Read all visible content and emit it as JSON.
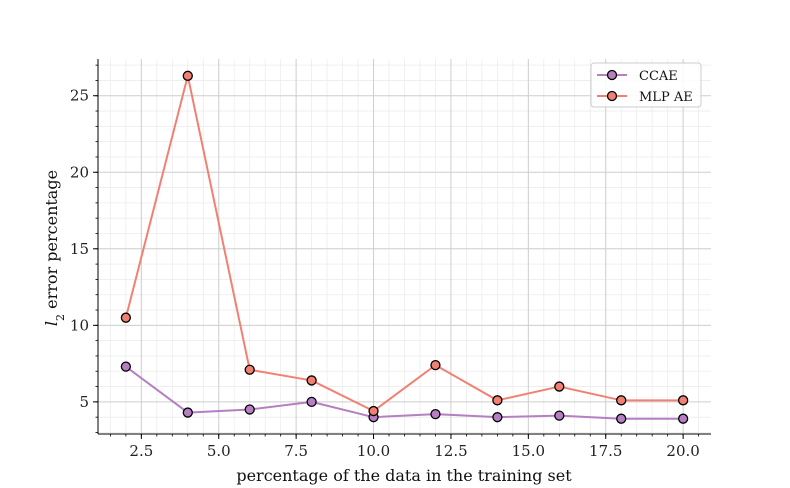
{
  "chart_data": {
    "type": "line",
    "title": "",
    "xlabel": "percentage of the data in the training set",
    "ylabel_main": "l",
    "ylabel_sub": "2",
    "ylabel_rest": " error percentage",
    "xlim": [
      1.1,
      20.9
    ],
    "ylim": [
      2.9,
      27.4
    ],
    "xticks": [
      2.5,
      5.0,
      7.5,
      10.0,
      12.5,
      15.0,
      17.5,
      20.0
    ],
    "xtick_labels": [
      "2.5",
      "5.0",
      "7.5",
      "10.0",
      "12.5",
      "15.0",
      "17.5",
      "20.0"
    ],
    "yticks": [
      5,
      10,
      15,
      20,
      25
    ],
    "ytick_labels": [
      "5",
      "10",
      "15",
      "20",
      "25"
    ],
    "grid": true,
    "legend_position": "top-right",
    "series": [
      {
        "name": "CCAE",
        "color": "#b57fc2",
        "x": [
          2,
          4,
          6,
          8,
          10,
          12,
          14,
          16,
          18,
          20
        ],
        "y": [
          7.3,
          4.3,
          4.5,
          5.0,
          4.0,
          4.2,
          4.0,
          4.1,
          3.9,
          3.9
        ]
      },
      {
        "name": "MLP AE",
        "color": "#f28072",
        "x": [
          2,
          4,
          6,
          8,
          10,
          12,
          14,
          16,
          18,
          20
        ],
        "y": [
          10.5,
          26.3,
          7.1,
          6.4,
          4.4,
          7.4,
          5.1,
          6.0,
          5.1,
          5.1
        ]
      }
    ]
  }
}
